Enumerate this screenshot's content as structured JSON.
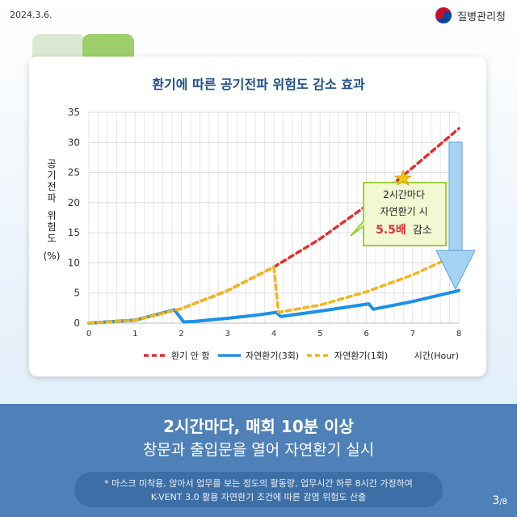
{
  "header": {
    "date": "2024.3.6.",
    "agency": "질병관리청"
  },
  "chart_data": {
    "type": "line",
    "title": "환기에 따른 공기전파 위험도 감소 효과",
    "ylabel": "공기전파 위험도 (%)",
    "xlabel": "시간(Hour)",
    "ylim": [
      0,
      35
    ],
    "xlim": [
      0,
      8
    ],
    "yticks": [
      0,
      5,
      10,
      15,
      20,
      25,
      30,
      35
    ],
    "xticks": [
      0,
      1,
      2,
      3,
      4,
      5,
      6,
      7,
      8
    ],
    "grid": true,
    "legend_position": "bottom",
    "series": [
      {
        "name": "환기 안 함",
        "style": "dashed",
        "color": "#e0302f",
        "points": [
          [
            0,
            0
          ],
          [
            1,
            0.5
          ],
          [
            2,
            2.4
          ],
          [
            3,
            5.4
          ],
          [
            4,
            9.3
          ],
          [
            5,
            14
          ],
          [
            6,
            19.5
          ],
          [
            7,
            25.8
          ],
          [
            8,
            32.3
          ]
        ]
      },
      {
        "name": "자연환기(3회)",
        "style": "solid",
        "color": "#1e90e6",
        "points": [
          [
            0,
            0
          ],
          [
            1,
            0.5
          ],
          [
            1.85,
            2.2
          ],
          [
            1.95,
            1.2
          ],
          [
            2.05,
            0.2
          ],
          [
            2.3,
            0.3
          ],
          [
            3,
            0.8
          ],
          [
            3.6,
            1.3
          ],
          [
            4.05,
            1.8
          ],
          [
            4.15,
            1.1
          ],
          [
            5,
            2.0
          ],
          [
            6.05,
            3.2
          ],
          [
            6.15,
            2.3
          ],
          [
            7,
            3.6
          ],
          [
            8,
            5.4
          ]
        ]
      },
      {
        "name": "자연환기(1회)",
        "style": "dashed",
        "color": "#f2b51a",
        "points": [
          [
            0,
            0
          ],
          [
            1,
            0.5
          ],
          [
            2,
            2.4
          ],
          [
            3,
            5.4
          ],
          [
            4,
            9.3
          ],
          [
            4.05,
            5.5
          ],
          [
            4.1,
            1.8
          ],
          [
            5,
            3.0
          ],
          [
            6,
            5.2
          ],
          [
            7,
            8.0
          ],
          [
            7.8,
            10.8
          ]
        ]
      }
    ],
    "annotation": {
      "line1": "2시간마다",
      "line2": "자연환기 시",
      "highlight": "5.5배",
      "suffix": "감소"
    }
  },
  "footer": {
    "headline": "2시간마다, 매회 10분 이상",
    "subheadline": "창문과 출입문을 열어 자연환기 실시",
    "note_line1": "* 마스크 미착용, 앉아서 업무를 보는 정도의 활동량, 업무시간 하루 8시간 가정하여",
    "note_line2": "K-VENT 3.0 활용 자연환기 조건에 따른 감염 위험도 산출",
    "page_current": "3",
    "page_total": "/8"
  }
}
